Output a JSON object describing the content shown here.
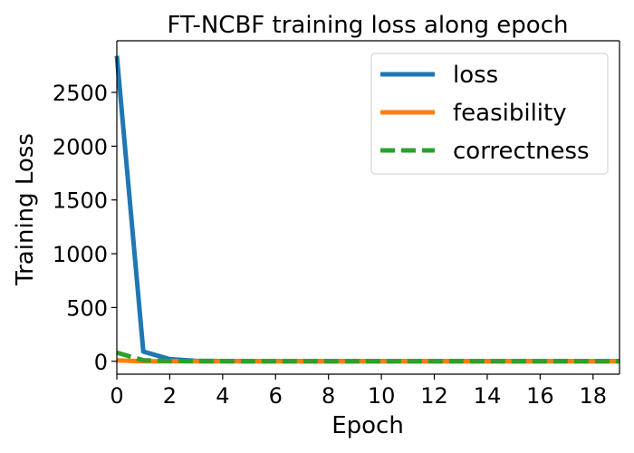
{
  "chart_data": {
    "type": "line",
    "title": "FT-NCBF training loss along epoch",
    "xlabel": "Epoch",
    "ylabel": "Training Loss",
    "xlim": [
      0,
      19
    ],
    "ylim": [
      -120,
      2980
    ],
    "xticks": [
      0,
      2,
      4,
      6,
      8,
      10,
      12,
      14,
      16,
      18
    ],
    "yticks": [
      0,
      500,
      1000,
      1500,
      2000,
      2500
    ],
    "grid": false,
    "legend_position": "top-right",
    "x": [
      0,
      1,
      2,
      3,
      4,
      5,
      6,
      7,
      8,
      9,
      10,
      11,
      12,
      13,
      14,
      15,
      16,
      17,
      18,
      19
    ],
    "series": [
      {
        "name": "loss",
        "color": "#1f77b4",
        "style": "solid",
        "values": [
          2840,
          90,
          20,
          4,
          2,
          1,
          1,
          1,
          1,
          1,
          1,
          1,
          1,
          1,
          1,
          1,
          1,
          1,
          1,
          1
        ]
      },
      {
        "name": "feasibility",
        "color": "#ff7f0e",
        "style": "solid",
        "values": [
          8,
          0,
          0,
          0,
          0,
          0,
          0,
          0,
          0,
          0,
          0,
          0,
          0,
          0,
          0,
          0,
          0,
          0,
          0,
          0
        ]
      },
      {
        "name": "correctness",
        "color": "#2ca02c",
        "style": "dashed",
        "values": [
          80,
          10,
          2,
          1,
          0,
          0,
          0,
          0,
          0,
          0,
          0,
          0,
          0,
          0,
          0,
          0,
          0,
          0,
          0,
          0
        ]
      }
    ]
  }
}
